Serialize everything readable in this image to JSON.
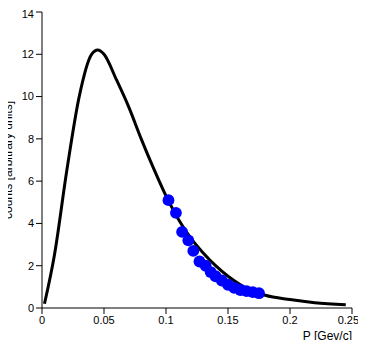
{
  "chart_data": {
    "type": "line",
    "x_label": "P [Gev/c]",
    "y_label": "counts [arbitrary units]",
    "xlim": [
      0,
      0.25
    ],
    "xticks": [
      0,
      0.05,
      0.1,
      0.15,
      0.2,
      0.25
    ],
    "ylim": [
      0,
      14
    ],
    "yticks": [
      0,
      2,
      4,
      6,
      8,
      10,
      12,
      14
    ],
    "grid": false,
    "series": [
      {
        "type": "line",
        "color": "#000000",
        "marker": "none",
        "line_style": "solid",
        "x": [
          0.002,
          0.01,
          0.02,
          0.03,
          0.04,
          0.045,
          0.05,
          0.06,
          0.07,
          0.08,
          0.09,
          0.1,
          0.11,
          0.12,
          0.13,
          0.14,
          0.15,
          0.16,
          0.17,
          0.18,
          0.2,
          0.22,
          0.245
        ],
        "values": [
          0.2,
          2.5,
          6.5,
          10,
          12,
          12.2,
          12,
          10.8,
          9.5,
          8,
          6.6,
          5.3,
          4.2,
          3.3,
          2.6,
          2.0,
          1.5,
          1.1,
          0.8,
          0.6,
          0.4,
          0.25,
          0.15
        ]
      },
      {
        "type": "scatter",
        "color": "#0000ff",
        "marker": "circle",
        "x": [
          0.102,
          0.108,
          0.113,
          0.118,
          0.122,
          0.127,
          0.132,
          0.136,
          0.14,
          0.145,
          0.15,
          0.155,
          0.16,
          0.165,
          0.17,
          0.175
        ],
        "values": [
          5.1,
          4.5,
          3.6,
          3.2,
          2.7,
          2.2,
          2.0,
          1.7,
          1.5,
          1.3,
          1.1,
          0.95,
          0.85,
          0.8,
          0.75,
          0.7
        ]
      }
    ]
  }
}
